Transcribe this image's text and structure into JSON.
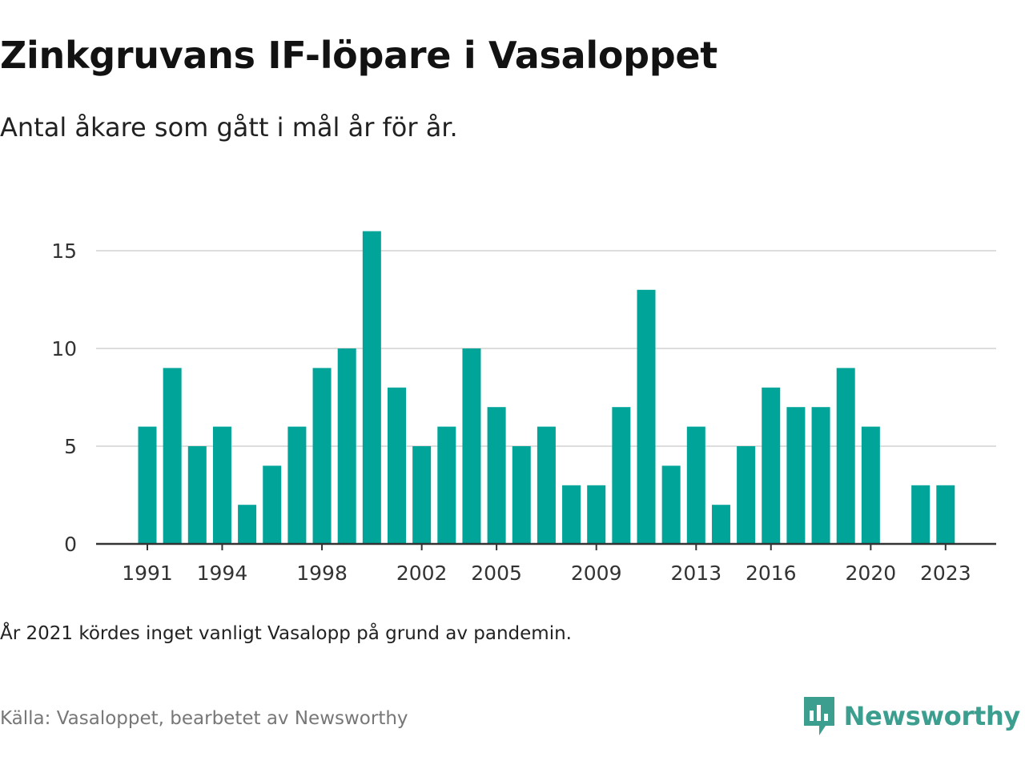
{
  "header": {
    "title": "Zinkgruvans IF-löpare i Vasaloppet",
    "subtitle": "Antal åkare som gått i mål år för år."
  },
  "footer": {
    "note": "År 2021 kördes inget vanligt Vasalopp på grund av pandemin.",
    "source": "Källa: Vasaloppet, bearbetet av Newsworthy",
    "brand_name": "Newsworthy",
    "brand_icon": "newsworthy-logo-icon"
  },
  "colors": {
    "bar": "#00a499",
    "grid": "#dddddd",
    "axis": "#333333",
    "brand": "#3b9e8f"
  },
  "chart_data": {
    "type": "bar",
    "categories": [
      "1991",
      "1992",
      "1993",
      "1994",
      "1995",
      "1996",
      "1997",
      "1998",
      "1999",
      "2000",
      "2001",
      "2002",
      "2003",
      "2004",
      "2005",
      "2006",
      "2007",
      "2008",
      "2009",
      "2010",
      "2011",
      "2012",
      "2013",
      "2014",
      "2015",
      "2016",
      "2017",
      "2018",
      "2019",
      "2020",
      "2021",
      "2022",
      "2023"
    ],
    "values": [
      6,
      9,
      5,
      6,
      2,
      4,
      6,
      9,
      10,
      16,
      8,
      5,
      6,
      10,
      7,
      5,
      6,
      3,
      3,
      7,
      13,
      4,
      6,
      2,
      5,
      8,
      7,
      7,
      9,
      6,
      null,
      3,
      3
    ],
    "x_tick_labels": [
      "1991",
      "1994",
      "1998",
      "2002",
      "2005",
      "2009",
      "2013",
      "2016",
      "2020",
      "2023"
    ],
    "y_ticks": [
      0,
      5,
      10,
      15
    ],
    "ylim": [
      0,
      16
    ],
    "grid": true,
    "title": "",
    "xlabel": "",
    "ylabel": ""
  }
}
